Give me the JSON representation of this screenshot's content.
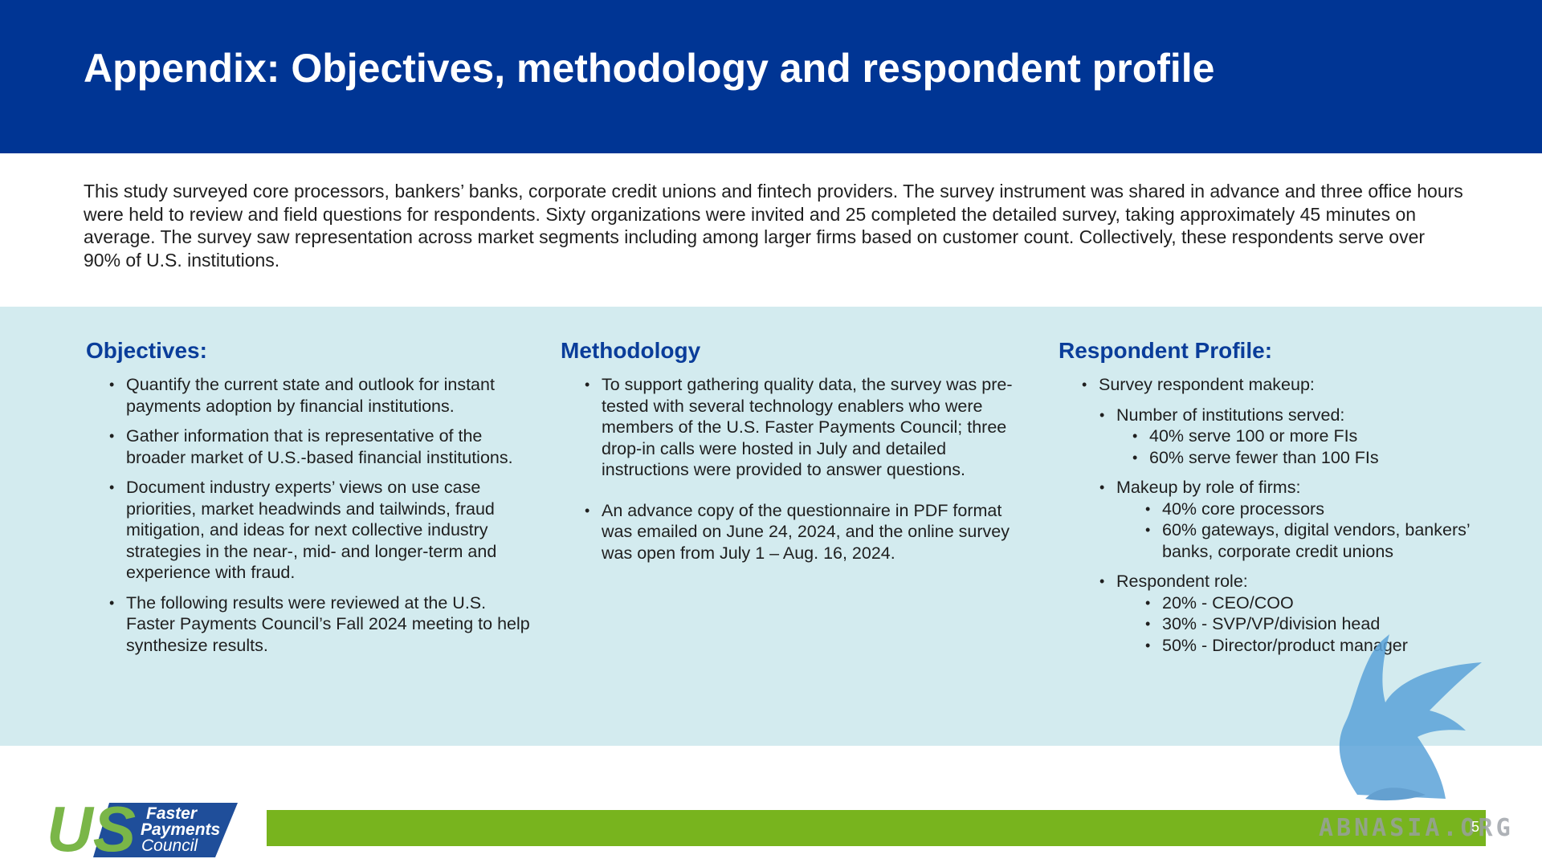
{
  "header": {
    "title": "Appendix: Objectives, methodology and respondent profile"
  },
  "intro": "This study surveyed core processors, bankers’ banks, corporate credit unions and fintech providers. The survey instrument was shared in advance and three office hours were held to review and field questions for respondents. Sixty organizations were invited and 25 completed the detailed survey, taking approximately 45 minutes on average. The survey saw representation across market segments including among larger firms based on customer count. Collectively, these respondents serve over 90% of U.S. institutions.",
  "objectives": {
    "heading": "Objectives:",
    "items": [
      "Quantify the current state and outlook for instant payments adoption by financial institutions.",
      "Gather information that is representative of the broader market of U.S.-based financial institutions.",
      "Document industry experts’ views on use case priorities, market headwinds and tailwinds, fraud mitigation, and ideas for next collective industry strategies in the near-, mid- and longer-term and experience with fraud.",
      "The following results were reviewed at the U.S. Faster Payments Council’s Fall 2024 meeting to help synthesize results."
    ]
  },
  "methodology": {
    "heading": "Methodology",
    "items": [
      "To support gathering quality data, the survey was pre-tested with several technology enablers who were members of the U.S. Faster Payments Council; three drop-in calls were hosted in July and detailed instructions were provided to answer questions.",
      "An advance copy of the questionnaire in PDF format was emailed on June 24, 2024, and the online survey was open from July 1 – Aug. 16, 2024."
    ]
  },
  "respondent": {
    "heading": "Respondent Profile:",
    "makeup_label": "Survey respondent makeup:",
    "institutions_label": "Number of institutions served:",
    "institutions": [
      "40% serve 100 or more FIs",
      "60% serve fewer than 100 FIs"
    ],
    "roles_label": "Makeup by role of firms:",
    "roles": [
      "40% core processors",
      "60% gateways, digital vendors, bankers’ banks, corporate credit unions"
    ],
    "respondent_role_label": "Respondent role:",
    "respondent_roles": [
      "20% -  CEO/COO",
      "30%  - SVP/VP/division head",
      "50%  -  Director/product manager"
    ]
  },
  "footer": {
    "logo_us": "US",
    "logo_line1": "Faster",
    "logo_line2": "Payments",
    "logo_line3": "Council",
    "page_number": "5",
    "watermark": "ABNASIA.ORG",
    "colors": {
      "navy": "#003594",
      "green": "#78b41e",
      "band": "#d3ebef"
    }
  }
}
